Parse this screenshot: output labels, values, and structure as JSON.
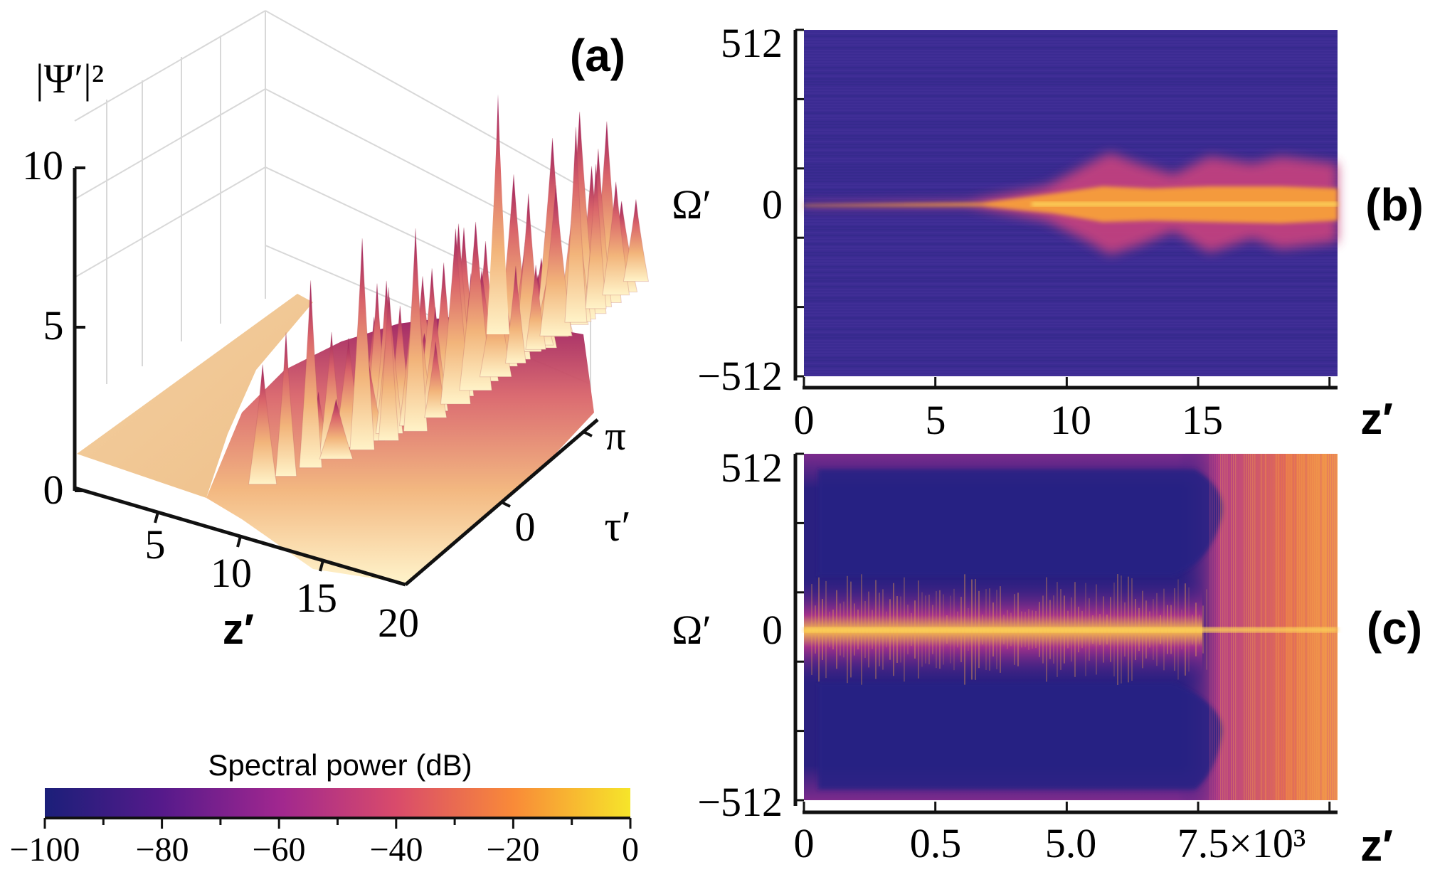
{
  "chart_data": [
    {
      "id": "a",
      "type": "surface3d",
      "panel_label": "(a)",
      "zlabel": "|Ψ′|²",
      "xlabel": "z′",
      "ylabel": "τ′",
      "zticks": [
        "0",
        "5",
        "10"
      ],
      "zlim": [
        0,
        12
      ],
      "xticks": [
        "5",
        "10",
        "15",
        "20"
      ],
      "xlim": [
        0,
        20
      ],
      "yticks": [
        "0",
        "π"
      ],
      "ylim": [
        -3.1416,
        3.1416
      ],
      "description_values": {
        "initial_level": 1,
        "peak_max": 12
      }
    },
    {
      "id": "b",
      "type": "heatmap",
      "panel_label": "(b)",
      "ylabel": "Ω′",
      "xlabel": "z′",
      "yticks": [
        "512",
        "0",
        "−512"
      ],
      "ylim": [
        -512,
        512
      ],
      "xticks": [
        "0",
        "5",
        "10",
        "15"
      ],
      "xlim": [
        0,
        20
      ],
      "colorbar": "spectral-power"
    },
    {
      "id": "c",
      "type": "heatmap",
      "panel_label": "(c)",
      "ylabel": "Ω′",
      "xlabel": "z′",
      "yticks": [
        "512",
        "0",
        "−512"
      ],
      "ylim": [
        -512,
        512
      ],
      "xticks": [
        "0",
        "0.5",
        "5.0",
        "7.5×10³"
      ],
      "colorbar": "spectral-power"
    },
    {
      "id": "colorbar",
      "type": "colorbar",
      "title": "Spectral power (dB)",
      "range": [
        -100,
        0
      ],
      "ticks": [
        "−100",
        "−80",
        "−60",
        "−40",
        "−20",
        "0"
      ],
      "stops": [
        "#1b1f79",
        "#561a8b",
        "#a0278f",
        "#d94b6b",
        "#f98a38",
        "#f6e52a"
      ]
    }
  ]
}
